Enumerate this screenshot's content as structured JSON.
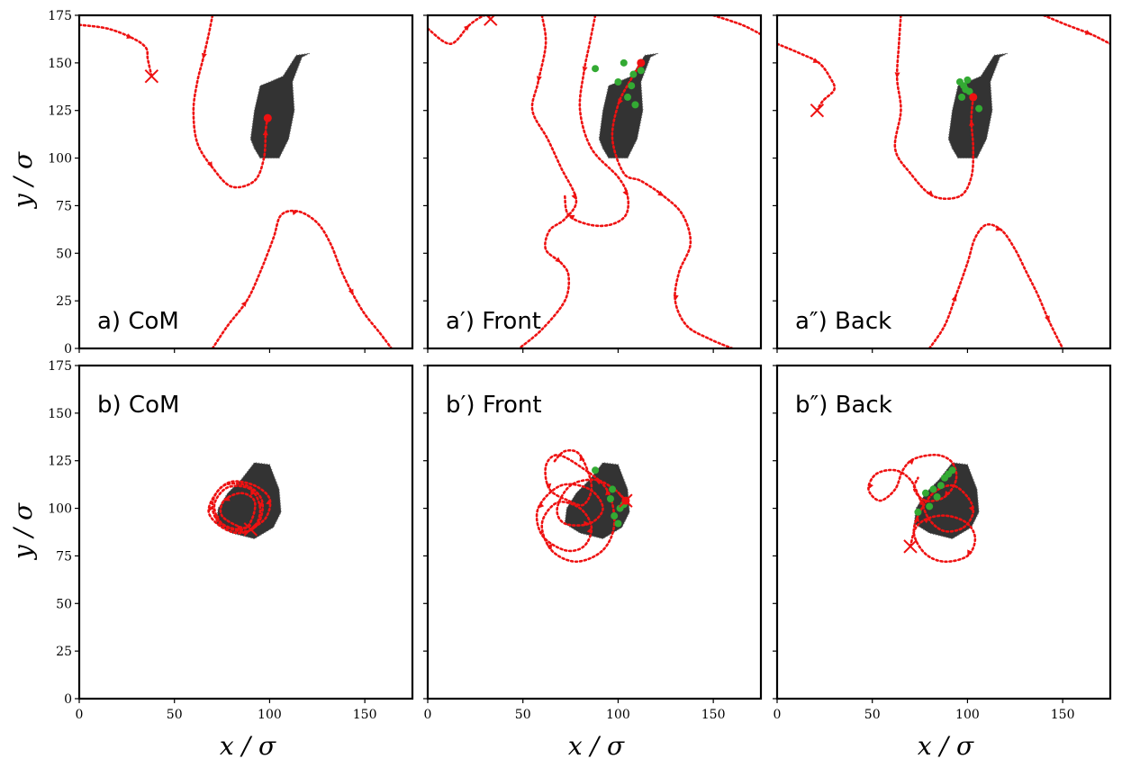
{
  "figure": {
    "rows": 2,
    "cols": 3,
    "shared_xlabel": "x / σ",
    "shared_ylabel": "y / σ",
    "xlim": [
      0,
      175
    ],
    "ylim": [
      0,
      175
    ],
    "xticks": [
      0,
      50,
      100,
      150
    ],
    "yticks": [
      0,
      25,
      50,
      75,
      100,
      125,
      150,
      175
    ],
    "colors": {
      "trajectory": "#ee1111",
      "cell": "#222222",
      "green_markers": "#33aa33"
    }
  },
  "chart_data": [
    {
      "type": "scatter",
      "panel_label": "a) CoM",
      "cell_outline": [
        [
          92,
          105
        ],
        [
          95,
          100
        ],
        [
          105,
          100
        ],
        [
          110,
          110
        ],
        [
          113,
          125
        ],
        [
          112,
          140
        ],
        [
          117,
          153
        ],
        [
          121,
          155
        ],
        [
          114,
          154
        ],
        [
          107,
          143
        ],
        [
          100,
          140
        ],
        [
          95,
          138
        ],
        [
          92,
          125
        ],
        [
          90,
          110
        ]
      ],
      "trajectories": [
        [
          [
            0,
            170
          ],
          [
            15,
            168
          ],
          [
            28,
            163
          ],
          [
            35,
            158
          ],
          [
            36,
            152
          ],
          [
            38,
            143
          ]
        ],
        [
          [
            70,
            175
          ],
          [
            68,
            165
          ],
          [
            65,
            152
          ],
          [
            62,
            140
          ],
          [
            60,
            125
          ],
          [
            62,
            108
          ],
          [
            70,
            95
          ],
          [
            80,
            85
          ],
          [
            92,
            88
          ],
          [
            97,
            100
          ],
          [
            98,
            115
          ],
          [
            99,
            121
          ]
        ],
        [
          [
            70,
            0
          ],
          [
            78,
            12
          ],
          [
            88,
            25
          ],
          [
            95,
            40
          ],
          [
            102,
            58
          ],
          [
            106,
            70
          ],
          [
            115,
            72
          ],
          [
            125,
            66
          ],
          [
            132,
            55
          ],
          [
            138,
            40
          ],
          [
            144,
            28
          ],
          [
            150,
            18
          ],
          [
            158,
            8
          ],
          [
            164,
            0
          ]
        ]
      ],
      "start_points": [
        [
          99,
          121
        ]
      ],
      "end_points": [
        [
          38,
          143
        ]
      ],
      "green_points": []
    },
    {
      "type": "scatter",
      "panel_label": "a′) Front",
      "cell_outline": [
        [
          92,
          105
        ],
        [
          95,
          100
        ],
        [
          105,
          100
        ],
        [
          110,
          110
        ],
        [
          113,
          125
        ],
        [
          112,
          140
        ],
        [
          117,
          153
        ],
        [
          121,
          155
        ],
        [
          114,
          154
        ],
        [
          107,
          143
        ],
        [
          100,
          140
        ],
        [
          95,
          138
        ],
        [
          92,
          125
        ],
        [
          90,
          110
        ]
      ],
      "trajectories": [
        [
          [
            0,
            168
          ],
          [
            12,
            160
          ],
          [
            22,
            170
          ],
          [
            30,
            175
          ],
          [
            33,
            173
          ]
        ],
        [
          [
            60,
            175
          ],
          [
            62,
            160
          ],
          [
            58,
            140
          ],
          [
            55,
            125
          ],
          [
            63,
            110
          ],
          [
            70,
            95
          ],
          [
            78,
            78
          ],
          [
            72,
            68
          ],
          [
            64,
            62
          ],
          [
            62,
            52
          ],
          [
            70,
            45
          ],
          [
            74,
            38
          ],
          [
            72,
            25
          ],
          [
            60,
            10
          ],
          [
            48,
            0
          ]
        ],
        [
          [
            88,
            175
          ],
          [
            85,
            160
          ],
          [
            82,
            145
          ],
          [
            80,
            125
          ],
          [
            86,
            105
          ],
          [
            100,
            90
          ],
          [
            105,
            80
          ],
          [
            104,
            70
          ],
          [
            96,
            65
          ],
          [
            85,
            65
          ],
          [
            74,
            70
          ],
          [
            72,
            80
          ]
        ],
        [
          [
            112,
            150
          ],
          [
            106,
            140
          ],
          [
            100,
            128
          ],
          [
            97,
            110
          ],
          [
            103,
            92
          ],
          [
            112,
            88
          ],
          [
            124,
            80
          ],
          [
            134,
            70
          ],
          [
            138,
            55
          ],
          [
            132,
            40
          ],
          [
            130,
            25
          ],
          [
            136,
            12
          ],
          [
            148,
            5
          ],
          [
            160,
            0
          ]
        ],
        [
          [
            150,
            175
          ],
          [
            165,
            170
          ],
          [
            175,
            165
          ]
        ]
      ],
      "start_points": [
        [
          112,
          150
        ]
      ],
      "end_points": [
        [
          33,
          173
        ]
      ],
      "green_points": [
        [
          88,
          147
        ],
        [
          100,
          140
        ],
        [
          105,
          132
        ],
        [
          107,
          138
        ],
        [
          108,
          144
        ],
        [
          112,
          146
        ],
        [
          103,
          150
        ],
        [
          109,
          128
        ]
      ]
    },
    {
      "type": "scatter",
      "panel_label": "a″) Back",
      "cell_outline": [
        [
          92,
          105
        ],
        [
          95,
          100
        ],
        [
          105,
          100
        ],
        [
          110,
          110
        ],
        [
          113,
          125
        ],
        [
          112,
          140
        ],
        [
          117,
          153
        ],
        [
          121,
          155
        ],
        [
          114,
          154
        ],
        [
          107,
          143
        ],
        [
          100,
          140
        ],
        [
          95,
          138
        ],
        [
          92,
          125
        ],
        [
          90,
          110
        ]
      ],
      "trajectories": [
        [
          [
            0,
            160
          ],
          [
            12,
            155
          ],
          [
            22,
            150
          ],
          [
            28,
            142
          ],
          [
            30,
            136
          ],
          [
            24,
            130
          ],
          [
            21,
            125
          ]
        ],
        [
          [
            65,
            175
          ],
          [
            64,
            160
          ],
          [
            63,
            142
          ],
          [
            65,
            125
          ],
          [
            62,
            105
          ],
          [
            70,
            92
          ],
          [
            82,
            80
          ],
          [
            96,
            80
          ],
          [
            102,
            90
          ],
          [
            103,
            105
          ],
          [
            102,
            120
          ],
          [
            103,
            132
          ]
        ],
        [
          [
            80,
            0
          ],
          [
            88,
            12
          ],
          [
            94,
            28
          ],
          [
            100,
            45
          ],
          [
            104,
            58
          ],
          [
            110,
            65
          ],
          [
            118,
            62
          ],
          [
            125,
            52
          ],
          [
            131,
            40
          ],
          [
            137,
            28
          ],
          [
            143,
            14
          ],
          [
            150,
            0
          ]
        ],
        [
          [
            140,
            175
          ],
          [
            152,
            170
          ],
          [
            165,
            165
          ],
          [
            175,
            160
          ]
        ]
      ],
      "start_points": [
        [
          103,
          132
        ]
      ],
      "end_points": [
        [
          21,
          125
        ]
      ],
      "green_points": [
        [
          96,
          140
        ],
        [
          98,
          138
        ],
        [
          99,
          136
        ],
        [
          100,
          141
        ],
        [
          101,
          135
        ],
        [
          106,
          126
        ],
        [
          97,
          132
        ]
      ]
    },
    {
      "type": "scatter",
      "panel_label": "b) CoM",
      "cell_outline": [
        [
          72,
          92
        ],
        [
          80,
          87
        ],
        [
          92,
          84
        ],
        [
          102,
          90
        ],
        [
          106,
          98
        ],
        [
          105,
          110
        ],
        [
          100,
          123
        ],
        [
          92,
          124
        ],
        [
          85,
          115
        ],
        [
          78,
          108
        ],
        [
          73,
          100
        ]
      ],
      "trajectories": [
        [
          [
            90,
            89
          ],
          [
            98,
            95
          ],
          [
            100,
            105
          ],
          [
            92,
            112
          ],
          [
            80,
            114
          ],
          [
            72,
            108
          ],
          [
            68,
            98
          ],
          [
            75,
            90
          ],
          [
            85,
            87
          ],
          [
            94,
            92
          ],
          [
            96,
            104
          ],
          [
            88,
            112
          ],
          [
            76,
            112
          ],
          [
            70,
            103
          ],
          [
            73,
            93
          ],
          [
            84,
            88
          ],
          [
            92,
            90
          ],
          [
            95,
            100
          ],
          [
            90,
            110
          ],
          [
            78,
            111
          ],
          [
            71,
            102
          ],
          [
            75,
            92
          ],
          [
            86,
            89
          ],
          [
            91,
            95
          ],
          [
            92,
            104
          ],
          [
            85,
            108
          ],
          [
            76,
            104
          ],
          [
            75,
            96
          ],
          [
            85,
            90
          ],
          [
            90,
            91
          ]
        ]
      ],
      "start_points": [],
      "end_points": [
        [
          90,
          89
        ]
      ],
      "green_points": []
    },
    {
      "type": "scatter",
      "panel_label": "b′) Front",
      "cell_outline": [
        [
          72,
          92
        ],
        [
          80,
          87
        ],
        [
          92,
          84
        ],
        [
          102,
          90
        ],
        [
          106,
          98
        ],
        [
          105,
          110
        ],
        [
          100,
          123
        ],
        [
          92,
          124
        ],
        [
          85,
          115
        ],
        [
          78,
          108
        ],
        [
          73,
          100
        ]
      ],
      "trajectories": [
        [
          [
            104,
            104
          ],
          [
            98,
            110
          ],
          [
            88,
            115
          ],
          [
            75,
            112
          ],
          [
            68,
            100
          ],
          [
            72,
            92
          ],
          [
            85,
            92
          ],
          [
            92,
            100
          ],
          [
            85,
            110
          ],
          [
            70,
            112
          ],
          [
            58,
            100
          ],
          [
            60,
            86
          ],
          [
            72,
            78
          ],
          [
            82,
            80
          ],
          [
            86,
            90
          ],
          [
            80,
            100
          ],
          [
            68,
            103
          ],
          [
            60,
            92
          ],
          [
            65,
            78
          ],
          [
            78,
            72
          ],
          [
            92,
            78
          ],
          [
            98,
            92
          ],
          [
            94,
            110
          ],
          [
            80,
            122
          ],
          [
            68,
            128
          ],
          [
            62,
            122
          ],
          [
            64,
            110
          ],
          [
            74,
            104
          ],
          [
            82,
            102
          ],
          [
            86,
            112
          ],
          [
            80,
            128
          ],
          [
            72,
            130
          ],
          [
            66,
            124
          ]
        ]
      ],
      "start_points": [
        [
          104,
          104
        ]
      ],
      "end_points": [
        [
          104,
          104
        ]
      ],
      "green_points": [
        [
          88,
          120
        ],
        [
          96,
          105
        ],
        [
          98,
          96
        ],
        [
          100,
          92
        ],
        [
          101,
          100
        ],
        [
          97,
          110
        ],
        [
          103,
          102
        ]
      ]
    },
    {
      "type": "scatter",
      "panel_label": "b″) Back",
      "cell_outline": [
        [
          72,
          92
        ],
        [
          80,
          87
        ],
        [
          92,
          84
        ],
        [
          102,
          90
        ],
        [
          106,
          98
        ],
        [
          105,
          110
        ],
        [
          100,
          123
        ],
        [
          92,
          124
        ],
        [
          85,
          115
        ],
        [
          78,
          108
        ],
        [
          73,
          100
        ]
      ],
      "trajectories": [
        [
          [
            70,
            80
          ],
          [
            73,
            90
          ],
          [
            80,
            95
          ],
          [
            90,
            96
          ],
          [
            100,
            92
          ],
          [
            104,
            84
          ],
          [
            100,
            75
          ],
          [
            88,
            72
          ],
          [
            78,
            76
          ],
          [
            72,
            86
          ],
          [
            74,
            96
          ],
          [
            82,
            108
          ],
          [
            92,
            112
          ],
          [
            100,
            106
          ],
          [
            103,
            98
          ],
          [
            98,
            90
          ],
          [
            88,
            88
          ],
          [
            80,
            94
          ],
          [
            75,
            105
          ],
          [
            70,
            115
          ],
          [
            62,
            120
          ],
          [
            52,
            118
          ],
          [
            48,
            110
          ],
          [
            54,
            104
          ],
          [
            62,
            110
          ],
          [
            66,
            120
          ],
          [
            72,
            126
          ],
          [
            84,
            128
          ],
          [
            92,
            124
          ],
          [
            94,
            115
          ],
          [
            88,
            106
          ],
          [
            78,
            104
          ],
          [
            72,
            110
          ],
          [
            74,
            116
          ]
        ]
      ],
      "start_points": [],
      "end_points": [
        [
          70,
          80
        ]
      ],
      "green_points": [
        [
          78,
          108
        ],
        [
          82,
          110
        ],
        [
          86,
          112
        ],
        [
          88,
          116
        ],
        [
          90,
          118
        ],
        [
          84,
          106
        ],
        [
          74,
          98
        ],
        [
          80,
          101
        ],
        [
          92,
          120
        ]
      ]
    }
  ]
}
